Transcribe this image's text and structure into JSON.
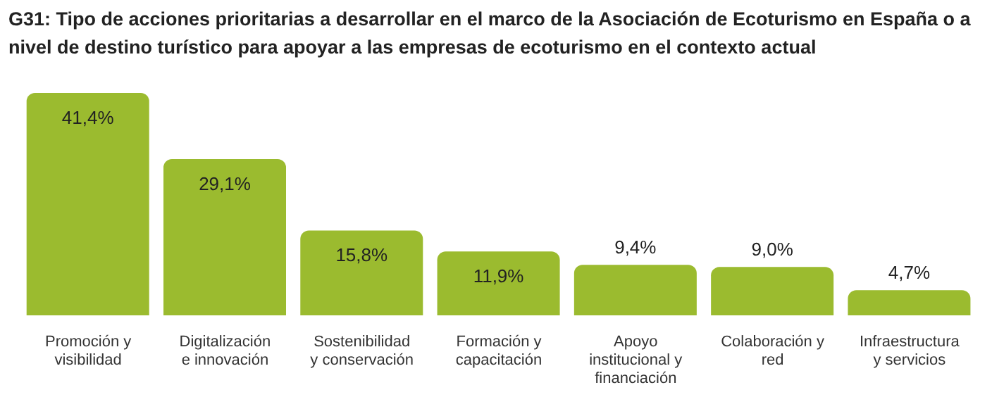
{
  "chart_data": {
    "type": "bar",
    "title": "G31: Tipo de acciones prioritarias a desarrollar en el marco de la Asociación de Ecoturismo en España o a nivel de destino turístico para apoyar a las empresas de ecoturismo en el contexto actual",
    "categories": [
      "Promoción y visibilidad",
      "Digitalización e innovación",
      "Sostenibilidad y conservación",
      "Formación y capacitación",
      "Apoyo institucional y financiación",
      "Colaboración y red",
      "Infraestructura y servicios"
    ],
    "values": [
      41.4,
      29.1,
      15.8,
      11.9,
      9.4,
      9.0,
      4.7
    ],
    "value_labels": [
      "41,4%",
      "29,1%",
      "15,8%",
      "11,9%",
      "9,4%",
      "9,0%",
      "4,7%"
    ],
    "color": "#9bbb2f"
  }
}
